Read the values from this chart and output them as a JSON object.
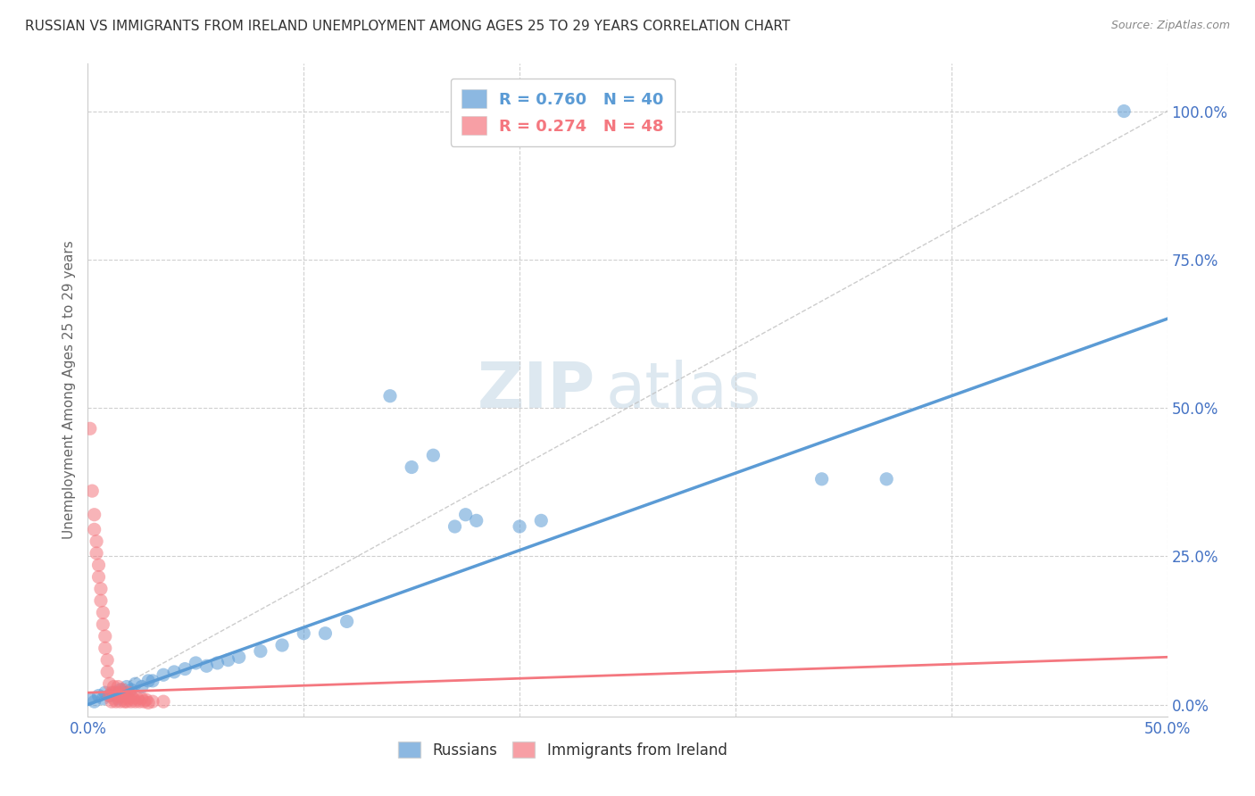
{
  "title": "RUSSIAN VS IMMIGRANTS FROM IRELAND UNEMPLOYMENT AMONG AGES 25 TO 29 YEARS CORRELATION CHART",
  "source": "Source: ZipAtlas.com",
  "ylabel": "Unemployment Among Ages 25 to 29 years",
  "ytick_labels": [
    "0.0%",
    "25.0%",
    "50.0%",
    "75.0%",
    "100.0%"
  ],
  "ytick_vals": [
    0.0,
    0.25,
    0.5,
    0.75,
    1.0
  ],
  "xlim": [
    0.0,
    0.5
  ],
  "ylim": [
    -0.02,
    1.08
  ],
  "legend_r_entries": [
    {
      "label": "R = 0.760",
      "n_label": "N = 40",
      "color": "#5b9bd5"
    },
    {
      "label": "R = 0.274",
      "n_label": "N = 48",
      "color": "#f4777f"
    }
  ],
  "russians_color": "#5b9bd5",
  "ireland_color": "#f4777f",
  "russians_scatter": [
    [
      0.001,
      0.01
    ],
    [
      0.003,
      0.005
    ],
    [
      0.005,
      0.015
    ],
    [
      0.007,
      0.01
    ],
    [
      0.008,
      0.02
    ],
    [
      0.01,
      0.015
    ],
    [
      0.012,
      0.02
    ],
    [
      0.014,
      0.01
    ],
    [
      0.015,
      0.025
    ],
    [
      0.017,
      0.02
    ],
    [
      0.018,
      0.03
    ],
    [
      0.02,
      0.025
    ],
    [
      0.022,
      0.035
    ],
    [
      0.025,
      0.03
    ],
    [
      0.028,
      0.04
    ],
    [
      0.03,
      0.04
    ],
    [
      0.035,
      0.05
    ],
    [
      0.04,
      0.055
    ],
    [
      0.045,
      0.06
    ],
    [
      0.05,
      0.07
    ],
    [
      0.055,
      0.065
    ],
    [
      0.06,
      0.07
    ],
    [
      0.065,
      0.075
    ],
    [
      0.07,
      0.08
    ],
    [
      0.08,
      0.09
    ],
    [
      0.09,
      0.1
    ],
    [
      0.1,
      0.12
    ],
    [
      0.11,
      0.12
    ],
    [
      0.12,
      0.14
    ],
    [
      0.14,
      0.52
    ],
    [
      0.15,
      0.4
    ],
    [
      0.16,
      0.42
    ],
    [
      0.17,
      0.3
    ],
    [
      0.175,
      0.32
    ],
    [
      0.18,
      0.31
    ],
    [
      0.2,
      0.3
    ],
    [
      0.21,
      0.31
    ],
    [
      0.34,
      0.38
    ],
    [
      0.37,
      0.38
    ],
    [
      0.48,
      1.0
    ]
  ],
  "ireland_scatter": [
    [
      0.001,
      0.465
    ],
    [
      0.002,
      0.36
    ],
    [
      0.003,
      0.32
    ],
    [
      0.003,
      0.295
    ],
    [
      0.004,
      0.275
    ],
    [
      0.004,
      0.255
    ],
    [
      0.005,
      0.235
    ],
    [
      0.005,
      0.215
    ],
    [
      0.006,
      0.195
    ],
    [
      0.006,
      0.175
    ],
    [
      0.007,
      0.155
    ],
    [
      0.007,
      0.135
    ],
    [
      0.008,
      0.115
    ],
    [
      0.008,
      0.095
    ],
    [
      0.009,
      0.075
    ],
    [
      0.009,
      0.055
    ],
    [
      0.01,
      0.035
    ],
    [
      0.01,
      0.015
    ],
    [
      0.011,
      0.005
    ],
    [
      0.011,
      0.02
    ],
    [
      0.012,
      0.03
    ],
    [
      0.012,
      0.01
    ],
    [
      0.013,
      0.02
    ],
    [
      0.013,
      0.005
    ],
    [
      0.014,
      0.015
    ],
    [
      0.014,
      0.03
    ],
    [
      0.015,
      0.02
    ],
    [
      0.015,
      0.005
    ],
    [
      0.016,
      0.015
    ],
    [
      0.016,
      0.025
    ],
    [
      0.017,
      0.01
    ],
    [
      0.017,
      0.005
    ],
    [
      0.018,
      0.015
    ],
    [
      0.018,
      0.005
    ],
    [
      0.019,
      0.01
    ],
    [
      0.019,
      0.02
    ],
    [
      0.02,
      0.005
    ],
    [
      0.02,
      0.015
    ],
    [
      0.021,
      0.01
    ],
    [
      0.022,
      0.005
    ],
    [
      0.023,
      0.01
    ],
    [
      0.024,
      0.005
    ],
    [
      0.025,
      0.01
    ],
    [
      0.026,
      0.005
    ],
    [
      0.027,
      0.008
    ],
    [
      0.028,
      0.003
    ],
    [
      0.03,
      0.005
    ],
    [
      0.035,
      0.005
    ]
  ],
  "watermark_zip": "ZIP",
  "watermark_atlas": "atlas",
  "grid_color": "#d0d0d0",
  "background_color": "#ffffff",
  "scatter_alpha": 0.55,
  "scatter_size": 120
}
